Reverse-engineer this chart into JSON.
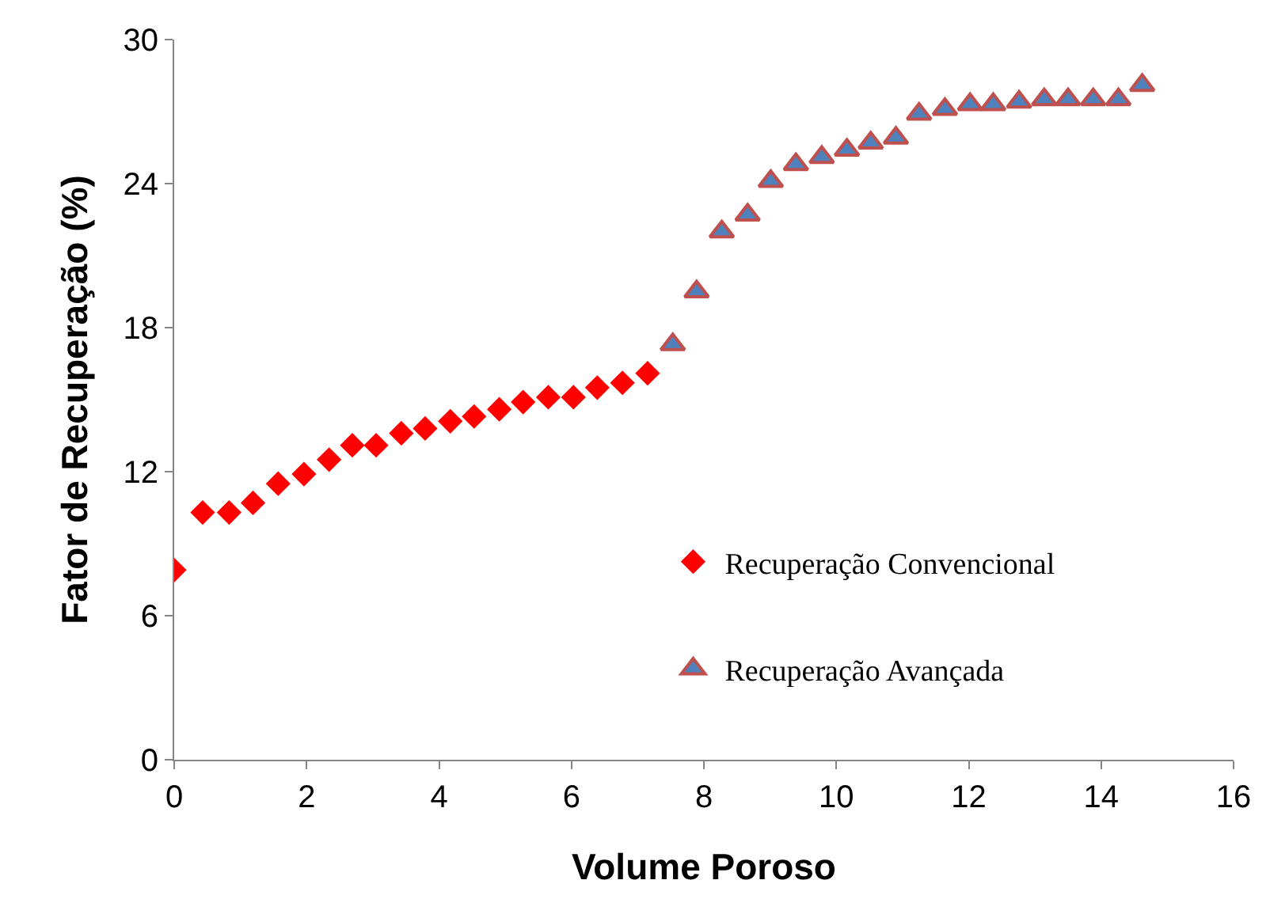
{
  "chart_data": {
    "type": "scatter",
    "xlabel": "Volume Poroso",
    "ylabel": "Fator de Recuperação (%)",
    "xlim": [
      0,
      16
    ],
    "xticks": [
      0,
      2,
      4,
      6,
      8,
      10,
      12,
      14,
      16
    ],
    "ylim": [
      0,
      30
    ],
    "yticks": [
      0,
      6,
      12,
      18,
      24,
      30
    ],
    "legend": "right",
    "series": [
      {
        "name": "Recuperação Convencional",
        "color": "#ff0000",
        "marker": "diamond",
        "x": [
          0,
          0.43,
          0.83,
          1.19,
          1.57,
          1.96,
          2.34,
          2.69,
          3.05,
          3.43,
          3.79,
          4.17,
          4.53,
          4.91,
          5.27,
          5.65,
          6.03,
          6.39,
          6.77,
          7.15
        ],
        "values": [
          7.9,
          10.3,
          10.3,
          10.7,
          11.5,
          11.9,
          12.5,
          13.1,
          13.1,
          13.6,
          13.8,
          14.1,
          14.3,
          14.6,
          14.9,
          15.1,
          15.1,
          15.5,
          15.7,
          16.1
        ]
      },
      {
        "name": "Recuperação Avançada",
        "color": "#4f81bd",
        "marker": "triangle",
        "x": [
          7.53,
          7.89,
          8.27,
          8.66,
          9.01,
          9.39,
          9.78,
          10.16,
          10.52,
          10.9,
          11.25,
          11.64,
          12.02,
          12.37,
          12.76,
          13.14,
          13.5,
          13.88,
          14.26,
          14.62
        ],
        "values": [
          17.3,
          19.5,
          22.0,
          22.7,
          24.1,
          24.8,
          25.1,
          25.4,
          25.7,
          25.9,
          26.9,
          27.1,
          27.3,
          27.3,
          27.4,
          27.5,
          27.5,
          27.5,
          27.5,
          28.1
        ]
      }
    ]
  }
}
